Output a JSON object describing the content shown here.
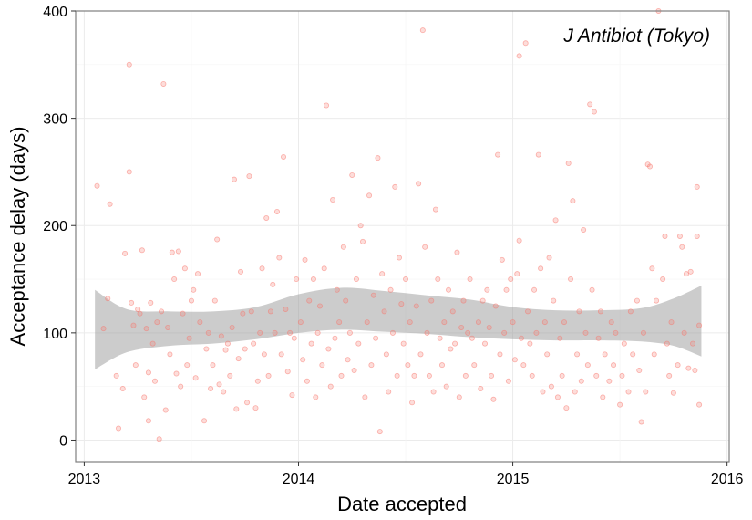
{
  "chart_data": {
    "type": "scatter",
    "annotation": "J Antibiot (Tokyo)",
    "xlabel": "Date accepted",
    "ylabel": "Acceptance delay (days)",
    "xlim": [
      2012.96,
      2016.01
    ],
    "ylim": [
      -20,
      400
    ],
    "x_ticks": [
      2013,
      2014,
      2015,
      2016
    ],
    "x_tick_labels": [
      "2013",
      "2014",
      "2015",
      "2016"
    ],
    "y_ticks": [
      0,
      100,
      200,
      300,
      400
    ],
    "y_tick_labels": [
      "0",
      "100",
      "200",
      "300",
      "400"
    ],
    "grid": true,
    "point_color": "#F8766D",
    "band_color": "#999999",
    "smooth": {
      "x": [
        2013.05,
        2013.2,
        2013.4,
        2013.6,
        2013.8,
        2014.0,
        2014.2,
        2014.4,
        2014.6,
        2014.8,
        2015.0,
        2015.2,
        2015.4,
        2015.6,
        2015.75,
        2015.88
      ],
      "lower": [
        66,
        82,
        88,
        90,
        94,
        100,
        103,
        101,
        99,
        96,
        94,
        93,
        93,
        92,
        88,
        78
      ],
      "upper": [
        140,
        122,
        120,
        120,
        124,
        136,
        142,
        139,
        135,
        131,
        124,
        121,
        121,
        123,
        132,
        144
      ]
    },
    "points": [
      [
        2013.06,
        237
      ],
      [
        2013.09,
        104
      ],
      [
        2013.11,
        132
      ],
      [
        2013.12,
        220
      ],
      [
        2013.15,
        60
      ],
      [
        2013.16,
        11
      ],
      [
        2013.18,
        48
      ],
      [
        2013.19,
        174
      ],
      [
        2013.21,
        350
      ],
      [
        2013.21,
        250
      ],
      [
        2013.22,
        128
      ],
      [
        2013.23,
        107
      ],
      [
        2013.24,
        70
      ],
      [
        2013.25,
        122
      ],
      [
        2013.26,
        118
      ],
      [
        2013.27,
        177
      ],
      [
        2013.28,
        40
      ],
      [
        2013.29,
        104
      ],
      [
        2013.3,
        63
      ],
      [
        2013.3,
        18
      ],
      [
        2013.31,
        128
      ],
      [
        2013.32,
        90
      ],
      [
        2013.33,
        55
      ],
      [
        2013.34,
        110
      ],
      [
        2013.35,
        1
      ],
      [
        2013.36,
        120
      ],
      [
        2013.37,
        332
      ],
      [
        2013.38,
        28
      ],
      [
        2013.39,
        105
      ],
      [
        2013.4,
        80
      ],
      [
        2013.41,
        175
      ],
      [
        2013.42,
        150
      ],
      [
        2013.43,
        62
      ],
      [
        2013.44,
        176
      ],
      [
        2013.45,
        50
      ],
      [
        2013.46,
        118
      ],
      [
        2013.47,
        160
      ],
      [
        2013.48,
        70
      ],
      [
        2013.49,
        95
      ],
      [
        2013.5,
        130
      ],
      [
        2013.51,
        140
      ],
      [
        2013.52,
        58
      ],
      [
        2013.53,
        155
      ],
      [
        2013.54,
        110
      ],
      [
        2013.56,
        18
      ],
      [
        2013.57,
        85
      ],
      [
        2013.58,
        100
      ],
      [
        2013.59,
        48
      ],
      [
        2013.6,
        70
      ],
      [
        2013.61,
        130
      ],
      [
        2013.62,
        187
      ],
      [
        2013.63,
        52
      ],
      [
        2013.64,
        97
      ],
      [
        2013.65,
        45
      ],
      [
        2013.66,
        84
      ],
      [
        2013.67,
        90
      ],
      [
        2013.68,
        60
      ],
      [
        2013.69,
        105
      ],
      [
        2013.7,
        243
      ],
      [
        2013.71,
        29
      ],
      [
        2013.72,
        76
      ],
      [
        2013.73,
        157
      ],
      [
        2013.74,
        118
      ],
      [
        2013.75,
        85
      ],
      [
        2013.76,
        35
      ],
      [
        2013.77,
        246
      ],
      [
        2013.78,
        120
      ],
      [
        2013.79,
        90
      ],
      [
        2013.8,
        30
      ],
      [
        2013.81,
        55
      ],
      [
        2013.82,
        100
      ],
      [
        2013.83,
        160
      ],
      [
        2013.84,
        80
      ],
      [
        2013.85,
        207
      ],
      [
        2013.86,
        60
      ],
      [
        2013.87,
        120
      ],
      [
        2013.88,
        145
      ],
      [
        2013.89,
        100
      ],
      [
        2013.9,
        213
      ],
      [
        2013.91,
        170
      ],
      [
        2013.92,
        80
      ],
      [
        2013.93,
        264
      ],
      [
        2013.94,
        122
      ],
      [
        2013.95,
        64
      ],
      [
        2013.96,
        100
      ],
      [
        2013.97,
        42
      ],
      [
        2013.98,
        95
      ],
      [
        2013.99,
        150
      ],
      [
        2014.01,
        110
      ],
      [
        2014.02,
        75
      ],
      [
        2014.03,
        168
      ],
      [
        2014.04,
        55
      ],
      [
        2014.05,
        130
      ],
      [
        2014.06,
        90
      ],
      [
        2014.07,
        150
      ],
      [
        2014.08,
        40
      ],
      [
        2014.09,
        100
      ],
      [
        2014.1,
        125
      ],
      [
        2014.11,
        70
      ],
      [
        2014.12,
        160
      ],
      [
        2014.13,
        312
      ],
      [
        2014.14,
        85
      ],
      [
        2014.15,
        50
      ],
      [
        2014.16,
        224
      ],
      [
        2014.17,
        95
      ],
      [
        2014.18,
        140
      ],
      [
        2014.19,
        110
      ],
      [
        2014.2,
        60
      ],
      [
        2014.21,
        180
      ],
      [
        2014.22,
        130
      ],
      [
        2014.23,
        75
      ],
      [
        2014.24,
        100
      ],
      [
        2014.25,
        247
      ],
      [
        2014.26,
        65
      ],
      [
        2014.27,
        150
      ],
      [
        2014.28,
        90
      ],
      [
        2014.29,
        200
      ],
      [
        2014.3,
        185
      ],
      [
        2014.31,
        40
      ],
      [
        2014.32,
        110
      ],
      [
        2014.33,
        228
      ],
      [
        2014.34,
        70
      ],
      [
        2014.35,
        135
      ],
      [
        2014.36,
        95
      ],
      [
        2014.37,
        263
      ],
      [
        2014.38,
        8
      ],
      [
        2014.39,
        155
      ],
      [
        2014.4,
        120
      ],
      [
        2014.41,
        80
      ],
      [
        2014.42,
        45
      ],
      [
        2014.43,
        140
      ],
      [
        2014.44,
        100
      ],
      [
        2014.45,
        236
      ],
      [
        2014.46,
        60
      ],
      [
        2014.47,
        170
      ],
      [
        2014.48,
        127
      ],
      [
        2014.49,
        90
      ],
      [
        2014.5,
        150
      ],
      [
        2014.51,
        70
      ],
      [
        2014.52,
        110
      ],
      [
        2014.53,
        35
      ],
      [
        2014.54,
        60
      ],
      [
        2014.55,
        125
      ],
      [
        2014.56,
        239
      ],
      [
        2014.57,
        80
      ],
      [
        2014.58,
        382
      ],
      [
        2014.59,
        180
      ],
      [
        2014.6,
        100
      ],
      [
        2014.61,
        60
      ],
      [
        2014.62,
        130
      ],
      [
        2014.63,
        45
      ],
      [
        2014.64,
        215
      ],
      [
        2014.65,
        150
      ],
      [
        2014.66,
        95
      ],
      [
        2014.67,
        70
      ],
      [
        2014.68,
        110
      ],
      [
        2014.69,
        50
      ],
      [
        2014.7,
        140
      ],
      [
        2014.71,
        85
      ],
      [
        2014.72,
        120
      ],
      [
        2014.73,
        90
      ],
      [
        2014.74,
        175
      ],
      [
        2014.75,
        40
      ],
      [
        2014.76,
        105
      ],
      [
        2014.77,
        130
      ],
      [
        2014.78,
        60
      ],
      [
        2014.79,
        100
      ],
      [
        2014.8,
        150
      ],
      [
        2014.81,
        95
      ],
      [
        2014.82,
        70
      ],
      [
        2014.84,
        110
      ],
      [
        2014.85,
        48
      ],
      [
        2014.86,
        130
      ],
      [
        2014.87,
        90
      ],
      [
        2014.88,
        140
      ],
      [
        2014.89,
        105
      ],
      [
        2014.9,
        60
      ],
      [
        2014.91,
        38
      ],
      [
        2014.92,
        125
      ],
      [
        2014.93,
        266
      ],
      [
        2014.94,
        80
      ],
      [
        2014.95,
        168
      ],
      [
        2014.96,
        100
      ],
      [
        2014.97,
        140
      ],
      [
        2014.98,
        55
      ],
      [
        2014.99,
        150
      ],
      [
        2015.0,
        110
      ],
      [
        2015.01,
        75
      ],
      [
        2015.02,
        155
      ],
      [
        2015.03,
        358
      ],
      [
        2015.03,
        186
      ],
      [
        2015.04,
        95
      ],
      [
        2015.05,
        70
      ],
      [
        2015.06,
        370
      ],
      [
        2015.07,
        120
      ],
      [
        2015.08,
        90
      ],
      [
        2015.09,
        60
      ],
      [
        2015.1,
        140
      ],
      [
        2015.11,
        100
      ],
      [
        2015.12,
        266
      ],
      [
        2015.13,
        160
      ],
      [
        2015.14,
        45
      ],
      [
        2015.15,
        110
      ],
      [
        2015.16,
        80
      ],
      [
        2015.17,
        170
      ],
      [
        2015.18,
        50
      ],
      [
        2015.19,
        130
      ],
      [
        2015.2,
        205
      ],
      [
        2015.21,
        40
      ],
      [
        2015.22,
        95
      ],
      [
        2015.23,
        60
      ],
      [
        2015.24,
        110
      ],
      [
        2015.25,
        30
      ],
      [
        2015.26,
        258
      ],
      [
        2015.27,
        150
      ],
      [
        2015.28,
        223
      ],
      [
        2015.29,
        45
      ],
      [
        2015.3,
        80
      ],
      [
        2015.31,
        120
      ],
      [
        2015.32,
        55
      ],
      [
        2015.33,
        196
      ],
      [
        2015.34,
        100
      ],
      [
        2015.35,
        70
      ],
      [
        2015.36,
        313
      ],
      [
        2015.37,
        140
      ],
      [
        2015.38,
        306
      ],
      [
        2015.39,
        60
      ],
      [
        2015.4,
        95
      ],
      [
        2015.41,
        120
      ],
      [
        2015.42,
        40
      ],
      [
        2015.43,
        80
      ],
      [
        2015.45,
        55
      ],
      [
        2015.46,
        110
      ],
      [
        2015.47,
        70
      ],
      [
        2015.48,
        100
      ],
      [
        2015.5,
        33
      ],
      [
        2015.51,
        60
      ],
      [
        2015.52,
        90
      ],
      [
        2015.54,
        45
      ],
      [
        2015.55,
        120
      ],
      [
        2015.56,
        80
      ],
      [
        2015.58,
        130
      ],
      [
        2015.59,
        65
      ],
      [
        2015.6,
        17
      ],
      [
        2015.61,
        100
      ],
      [
        2015.62,
        45
      ],
      [
        2015.63,
        257
      ],
      [
        2015.64,
        255
      ],
      [
        2015.65,
        160
      ],
      [
        2015.66,
        80
      ],
      [
        2015.67,
        130
      ],
      [
        2015.68,
        400
      ],
      [
        2015.7,
        150
      ],
      [
        2015.71,
        190
      ],
      [
        2015.72,
        90
      ],
      [
        2015.73,
        60
      ],
      [
        2015.74,
        110
      ],
      [
        2015.75,
        44
      ],
      [
        2015.77,
        70
      ],
      [
        2015.78,
        190
      ],
      [
        2015.79,
        180
      ],
      [
        2015.8,
        100
      ],
      [
        2015.81,
        155
      ],
      [
        2015.82,
        67
      ],
      [
        2015.83,
        157
      ],
      [
        2015.84,
        90
      ],
      [
        2015.85,
        65
      ],
      [
        2015.86,
        190
      ],
      [
        2015.86,
        236
      ],
      [
        2015.87,
        33
      ],
      [
        2015.87,
        107
      ]
    ]
  }
}
